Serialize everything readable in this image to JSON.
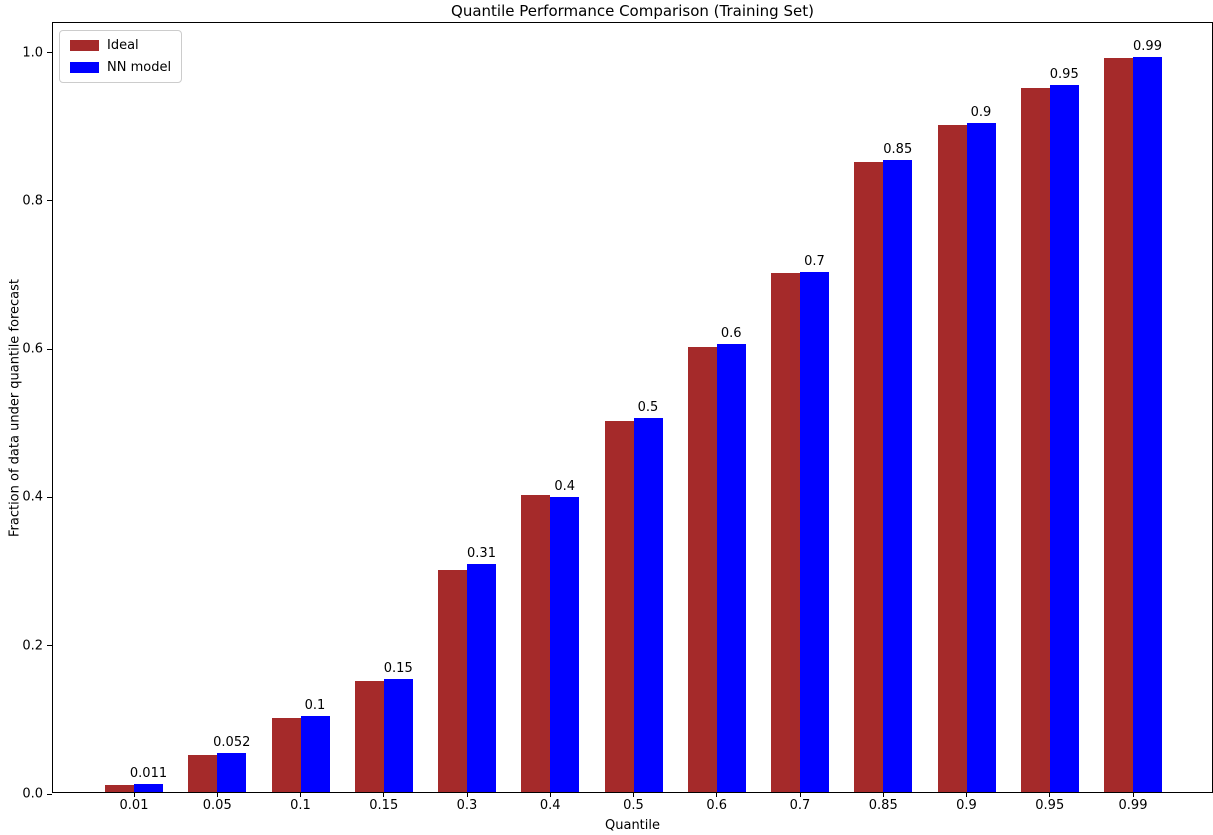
{
  "chart_data": {
    "type": "bar",
    "title": "Quantile Performance Comparison (Training Set)",
    "xlabel": "Quantile",
    "ylabel": "Fraction of data under quantile forecast",
    "categories": [
      "0.01",
      "0.05",
      "0.1",
      "0.15",
      "0.3",
      "0.4",
      "0.5",
      "0.6",
      "0.7",
      "0.85",
      "0.9",
      "0.95",
      "0.99"
    ],
    "series": [
      {
        "name": "Ideal",
        "color": "#a52a2a",
        "values": [
          0.01,
          0.05,
          0.1,
          0.15,
          0.3,
          0.4,
          0.5,
          0.6,
          0.7,
          0.85,
          0.9,
          0.95,
          0.99
        ]
      },
      {
        "name": "NN model",
        "color": "#0000ff",
        "values": [
          0.011,
          0.052,
          0.102,
          0.153,
          0.307,
          0.398,
          0.504,
          0.605,
          0.701,
          0.852,
          0.903,
          0.954,
          0.992
        ]
      }
    ],
    "bar_labels": [
      "0.011",
      "0.052",
      "0.1",
      "0.15",
      "0.31",
      "0.4",
      "0.5",
      "0.6",
      "0.7",
      "0.85",
      "0.9",
      "0.95",
      "0.99"
    ],
    "yticks": [
      {
        "label": "0.0",
        "v": 0.0
      },
      {
        "label": "0.2",
        "v": 0.2
      },
      {
        "label": "0.4",
        "v": 0.4
      },
      {
        "label": "0.6",
        "v": 0.6
      },
      {
        "label": "0.8",
        "v": 0.8
      },
      {
        "label": "1.0",
        "v": 1.0
      }
    ],
    "ylim": [
      0,
      1.04
    ],
    "grid": false,
    "legend_position": "upper-left",
    "colors": {
      "background": "#ffffff",
      "spine": "#000000",
      "text": "#000000",
      "legend_border": "#cccccc"
    }
  }
}
